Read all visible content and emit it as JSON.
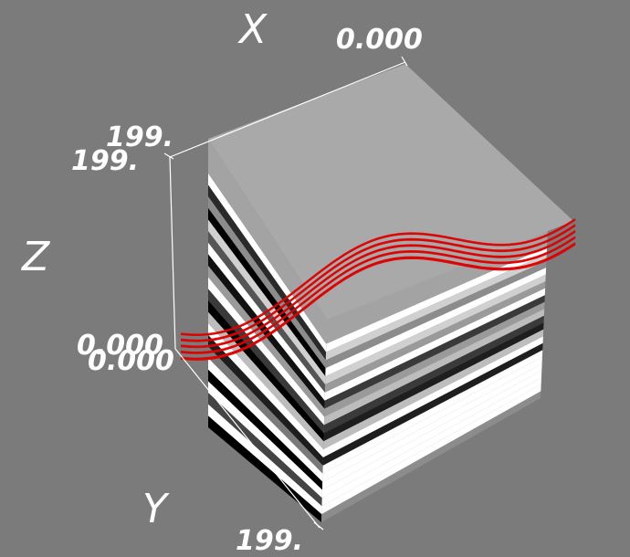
{
  "scene": {
    "background": "#7b7b7b",
    "axis_line_color": "#ffffff",
    "top_face_color": "#a9a9a9",
    "surface_color": "#e00000",
    "layer_colors": [
      "#ffffff",
      "#2a2a2a",
      "#8c8c8c",
      "#000000",
      "#d0d0d0",
      "#555555",
      "#ffffff",
      "#111111",
      "#9a9a9a",
      "#ffffff",
      "#3a3a3a",
      "#000000",
      "#bdbdbd",
      "#ffffff",
      "#1e1e1e",
      "#7a7a7a",
      "#ffffff",
      "#000000",
      "#ffffff",
      "#444444",
      "#ffffff",
      "#000000"
    ]
  },
  "axes": {
    "x": {
      "title": "X",
      "tick_start": "0.000"
    },
    "y": {
      "title": "Y",
      "tick_end": "199."
    },
    "z": {
      "title": "Z",
      "tick_top_a": "199.",
      "tick_top_b": "199.",
      "tick_bottom_a": "0.000",
      "tick_bottom_b": "0.000"
    }
  }
}
